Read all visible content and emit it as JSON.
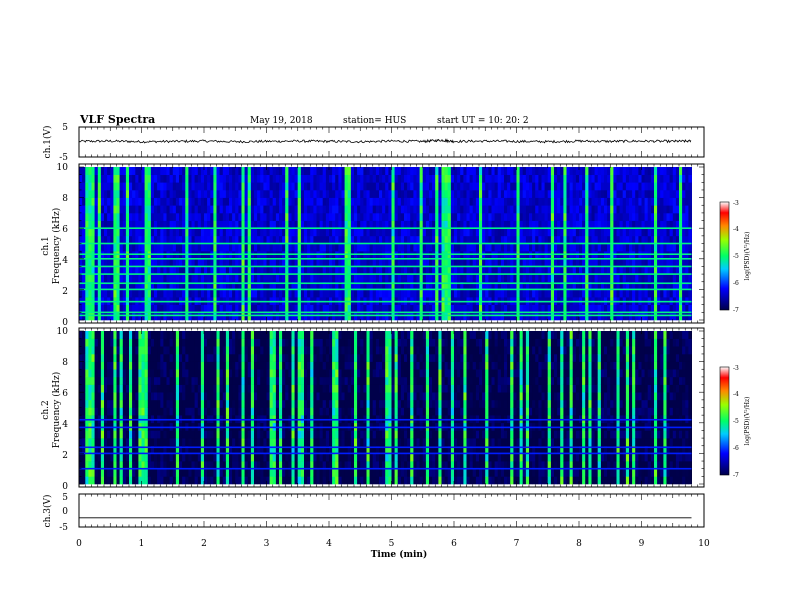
{
  "header": {
    "title": "VLF Spectra",
    "date": "May 19, 2018",
    "station": "station= HUS",
    "start": "start  UT  =    10: 20: 2"
  },
  "chart_data": [
    {
      "type": "line",
      "ylabel": "ch.1(V)",
      "ylim": [
        -5,
        5
      ],
      "yticks": [
        "5",
        "-5"
      ],
      "x": [
        0,
        0.5,
        1,
        1.5,
        2,
        2.5,
        3,
        3.5,
        4,
        4.5,
        5,
        5.5,
        5.8,
        6,
        6.5,
        7,
        7.5,
        8,
        8.5,
        9,
        9.5,
        9.8
      ],
      "values": [
        0.2,
        0.3,
        0.1,
        0.2,
        0.3,
        0.1,
        0.2,
        0.3,
        0.2,
        0.1,
        0.3,
        0.2,
        0.6,
        0.2,
        0.3,
        0.2,
        0.1,
        0.3,
        0.2,
        0.3,
        0.2,
        0.3
      ]
    },
    {
      "type": "heatmap",
      "ylabel": [
        "ch.1",
        "Frequency  (kHz)"
      ],
      "ylim": [
        0,
        10
      ],
      "yticks": [
        "0",
        "2",
        "4",
        "6",
        "8",
        "10"
      ],
      "colorbar": {
        "label": "log(PSD)(V²/Hz)",
        "ticks": [
          "-3",
          "-4",
          "-5",
          "-6",
          "-7"
        ],
        "range": [
          -7,
          -3
        ]
      },
      "base_level": -6.4,
      "horizontal_bands_khz": [
        0.3,
        0.5,
        1.2,
        2.0,
        2.4,
        3.0,
        3.5,
        4.0,
        4.3,
        5.0,
        6.0
      ],
      "bright_columns_min": [
        0.1,
        0.18,
        0.3,
        0.55,
        0.6,
        0.75,
        1.05,
        1.1,
        1.7,
        2.15,
        2.6,
        2.7,
        3.3,
        3.5,
        4.25,
        4.3,
        5.0,
        5.45,
        5.7,
        5.8,
        5.85,
        5.9,
        6.4,
        7.0,
        7.55,
        7.75,
        8.1,
        8.5,
        9.2,
        9.6
      ]
    },
    {
      "type": "heatmap",
      "ylabel": [
        "ch.2",
        "Frequency  (kHz)"
      ],
      "ylim": [
        0,
        10
      ],
      "yticks": [
        "0",
        "2",
        "4",
        "6",
        "8",
        "10"
      ],
      "colorbar": {
        "label": "log(PSD)(V²/Hz)",
        "ticks": [
          "-3",
          "-4",
          "-5",
          "-6",
          "-7"
        ],
        "range": [
          -7,
          -3
        ]
      },
      "base_level": -7,
      "horizontal_bands_khz": [
        1.0,
        2.0,
        2.4,
        3.7,
        4.2
      ],
      "bright_columns_min": [
        0.12,
        0.2,
        0.35,
        0.55,
        0.65,
        0.8,
        0.95,
        1.0,
        1.05,
        1.55,
        1.95,
        2.2,
        2.35,
        2.6,
        2.75,
        3.05,
        3.1,
        3.2,
        3.4,
        3.5,
        3.55,
        3.7,
        4.05,
        4.1,
        4.4,
        4.6,
        4.9,
        4.95,
        5.05,
        5.3,
        5.55,
        5.75,
        5.95,
        6.15,
        6.5,
        6.9,
        7.05,
        7.15,
        7.5,
        7.7,
        7.85,
        8.05,
        8.15,
        8.3,
        8.6,
        8.75,
        8.85,
        9.2,
        9.35
      ]
    },
    {
      "type": "line",
      "ylabel": "ch.3(V)",
      "ylim": [
        -5,
        5
      ],
      "yticks": [
        "5",
        "0",
        "-5"
      ],
      "x": [
        0,
        9.8
      ],
      "values": [
        -2.2,
        -2.2
      ]
    }
  ],
  "xaxis": {
    "label": "Time  (min)",
    "range": [
      0,
      10
    ],
    "ticks": [
      "0",
      "1",
      "2",
      "3",
      "4",
      "5",
      "6",
      "7",
      "8",
      "9",
      "10"
    ]
  }
}
